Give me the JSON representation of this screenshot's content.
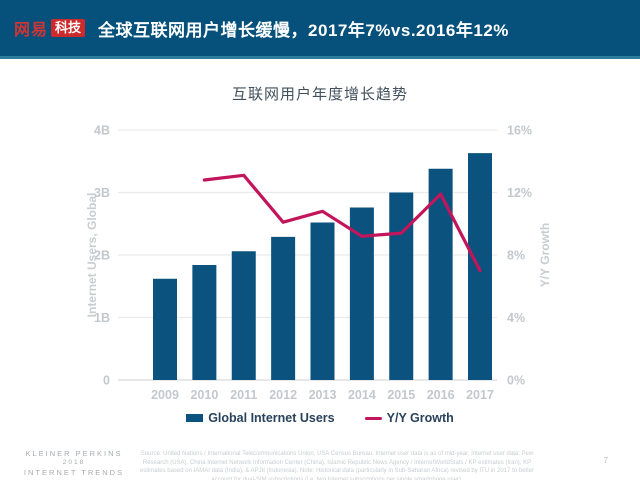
{
  "header": {
    "logo_brand": "网易",
    "logo_sub": "科技",
    "title": "全球互联网用户增长缓慢，2017年7%vs.2016年12%"
  },
  "chart_data": {
    "type": "bar",
    "subtype": "bar+line combo, dual axis",
    "title": "互联网用户年度增长趋势",
    "categories": [
      "2009",
      "2010",
      "2011",
      "2012",
      "2013",
      "2014",
      "2015",
      "2016",
      "2017"
    ],
    "series": [
      {
        "name": "Global Internet Users",
        "type": "bar",
        "axis": "left",
        "color": "#0c527e",
        "values": [
          1.62,
          1.84,
          2.06,
          2.29,
          2.52,
          2.76,
          3.0,
          3.38,
          3.63
        ]
      },
      {
        "name": "Y/Y Growth",
        "type": "line",
        "axis": "right",
        "color": "#c3155b",
        "values": [
          null,
          12.8,
          13.1,
          10.1,
          10.8,
          9.2,
          9.4,
          11.9,
          7.0
        ]
      }
    ],
    "left_axis": {
      "label": "Internet Users, Global",
      "ticks": [
        "0",
        "1B",
        "2B",
        "3B",
        "4B"
      ],
      "range": [
        0,
        4
      ]
    },
    "right_axis": {
      "label": "Y/Y Growth",
      "ticks": [
        "0%",
        "4%",
        "8%",
        "12%",
        "16%"
      ],
      "range": [
        0,
        16
      ]
    },
    "grid": true,
    "legend_position": "bottom"
  },
  "footer": {
    "brand_line1": "KLEINER PERKINS",
    "brand_line2": "2018",
    "brand_line3": "INTERNET TRENDS",
    "source": "Source: United Nations / International Telecommunications Union, USA Census Bureau. Internet user data is as of mid-year. Internet user data: Pew Research (USA), China Internet Network Information Center (China), Islamic Republic News Agency / InternetWorldStats / KP estimates (Iran), KP estimates based on IAMAI data (India), & APJII (Indonesia). Note: Historical data (particularly in Sub-Saharan Africa) revised by ITU in 2017 to better account for dual-SIM subscriptions (i.e. two Internet subscriptions per single smartphone user).",
    "page_number": "7"
  },
  "colors": {
    "banner_bg": "#05517c",
    "banner_edge": "#2c7d99",
    "logo_red": "#cd2b2b",
    "bar_blue": "#0c527e",
    "line_crimson": "#c3155b",
    "gridline": "#e9ebee",
    "baseline": "#d8dbde",
    "tick_label": "#c3c8cd",
    "axis_title": "#c8cdd1",
    "chart_title_text": "#42505e",
    "legend_text": "#29425b"
  }
}
